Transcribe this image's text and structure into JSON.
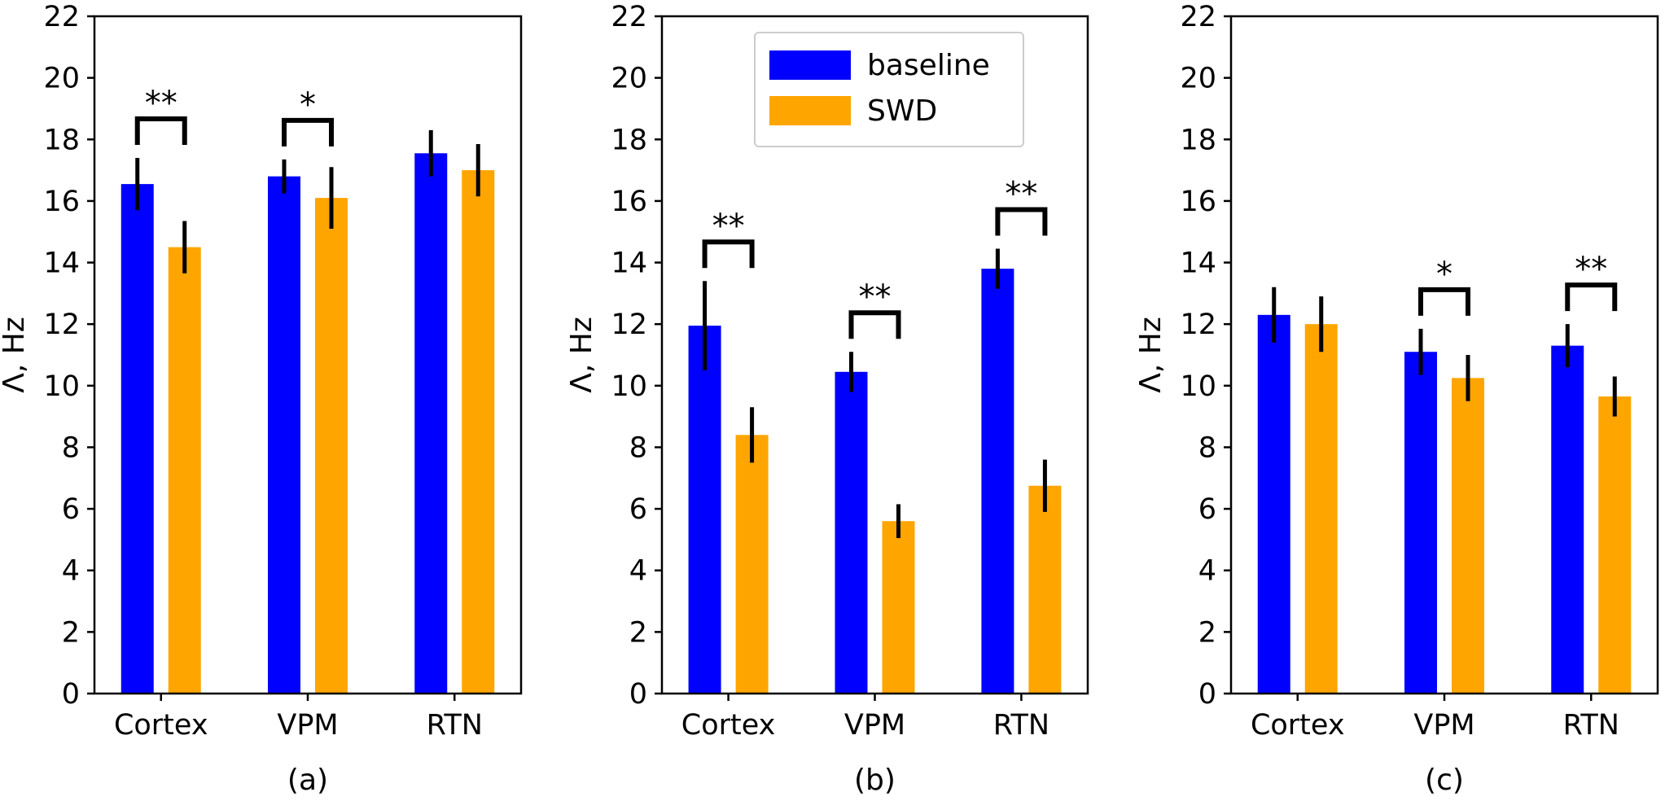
{
  "colors": {
    "baseline": "#0000ff",
    "swd": "#ffa500",
    "errorbar": "#000000",
    "axes": "#000000"
  },
  "legend": {
    "placement": "top-center of panel (b)",
    "entries": [
      {
        "label": "baseline",
        "color": "#0000ff"
      },
      {
        "label": "SWD",
        "color": "#ffa500"
      }
    ]
  },
  "chart_data": [
    {
      "type": "bar",
      "panel": "(a)",
      "categories": [
        "Cortex",
        "VPM",
        "RTN"
      ],
      "ylabel": "Λ, Hz",
      "ylim": [
        0,
        22
      ],
      "yticks": [
        0,
        2,
        4,
        6,
        8,
        10,
        12,
        14,
        16,
        18,
        20,
        22
      ],
      "series": [
        {
          "name": "baseline",
          "values": [
            16.55,
            16.8,
            17.55
          ],
          "errors": [
            0.85,
            0.55,
            0.75
          ]
        },
        {
          "name": "SWD",
          "values": [
            14.5,
            16.1,
            17.0
          ],
          "errors": [
            0.85,
            1.0,
            0.85
          ]
        }
      ],
      "significance": [
        {
          "category": "Cortex",
          "label": "**"
        },
        {
          "category": "VPM",
          "label": "*"
        }
      ]
    },
    {
      "type": "bar",
      "panel": "(b)",
      "categories": [
        "Cortex",
        "VPM",
        "RTN"
      ],
      "ylabel": "Λ, Hz",
      "ylim": [
        0,
        22
      ],
      "yticks": [
        0,
        2,
        4,
        6,
        8,
        10,
        12,
        14,
        16,
        18,
        20,
        22
      ],
      "series": [
        {
          "name": "baseline",
          "values": [
            11.95,
            10.45,
            13.8
          ],
          "errors": [
            1.45,
            0.65,
            0.65
          ]
        },
        {
          "name": "SWD",
          "values": [
            8.4,
            5.6,
            6.75
          ],
          "errors": [
            0.9,
            0.55,
            0.85
          ]
        }
      ],
      "significance": [
        {
          "category": "Cortex",
          "label": "**"
        },
        {
          "category": "VPM",
          "label": "**"
        },
        {
          "category": "RTN",
          "label": "**"
        }
      ]
    },
    {
      "type": "bar",
      "panel": "(c)",
      "categories": [
        "Cortex",
        "VPM",
        "RTN"
      ],
      "ylabel": "Λ, Hz",
      "ylim": [
        0,
        22
      ],
      "yticks": [
        0,
        2,
        4,
        6,
        8,
        10,
        12,
        14,
        16,
        18,
        20,
        22
      ],
      "series": [
        {
          "name": "baseline",
          "values": [
            12.3,
            11.1,
            11.3
          ],
          "errors": [
            0.9,
            0.75,
            0.7
          ]
        },
        {
          "name": "SWD",
          "values": [
            12.0,
            10.25,
            9.65
          ],
          "errors": [
            0.9,
            0.75,
            0.65
          ]
        }
      ],
      "significance": [
        {
          "category": "VPM",
          "label": "*"
        },
        {
          "category": "RTN",
          "label": "**"
        }
      ]
    }
  ]
}
